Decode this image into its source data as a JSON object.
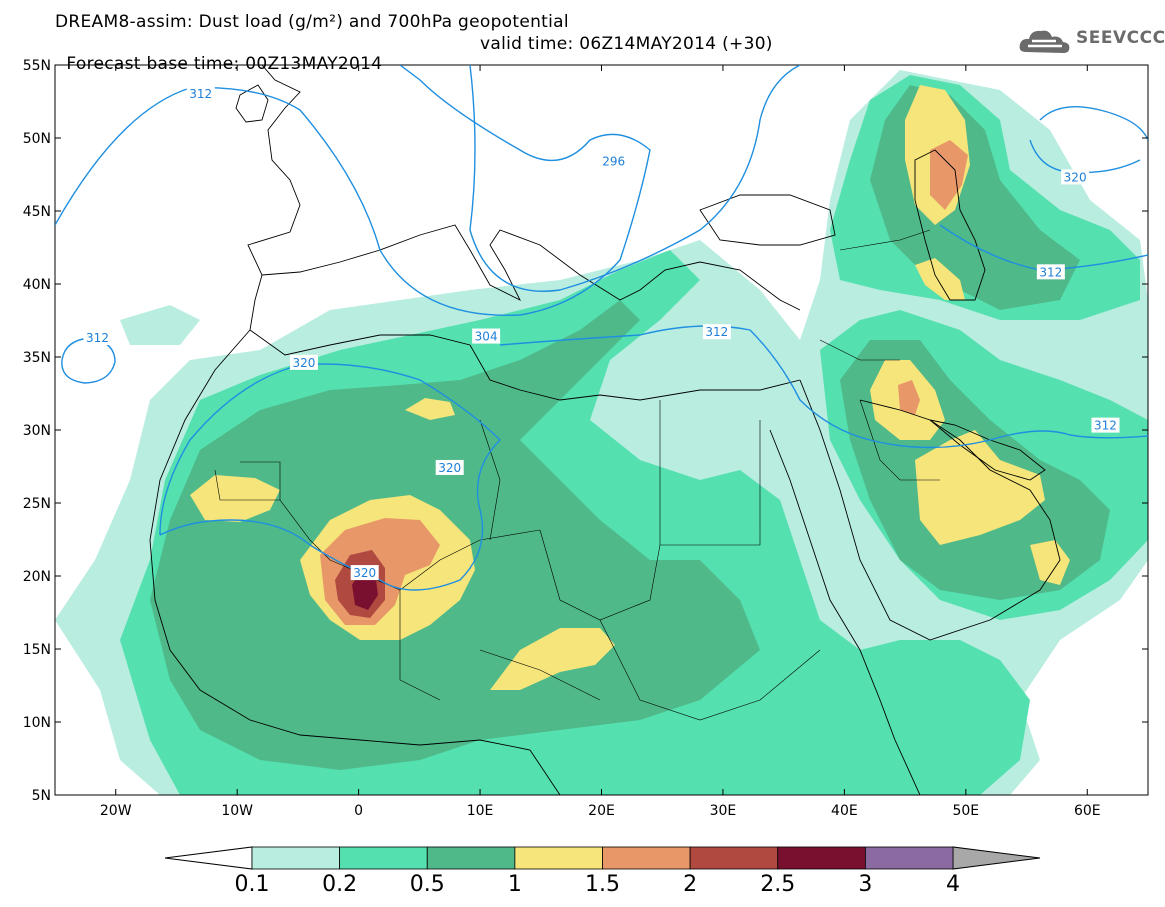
{
  "title": {
    "line1": "DREAM8-assim: Dust load (g/m²) and 700hPa geopotential",
    "line2_base": "Forecast base time: 00Z13MAY2014",
    "line2_valid": "valid time: 06Z14MAY2014 (+30)"
  },
  "logo": {
    "text": "SEEVCCC",
    "icon": "cloud-icon"
  },
  "axes": {
    "lat_labels": [
      "55N",
      "50N",
      "45N",
      "40N",
      "35N",
      "30N",
      "25N",
      "20N",
      "15N",
      "10N",
      "5N"
    ],
    "lat_values": [
      55,
      50,
      45,
      40,
      35,
      30,
      25,
      20,
      15,
      10,
      5
    ],
    "lon_labels": [
      "20W",
      "10W",
      "0",
      "10E",
      "20E",
      "30E",
      "40E",
      "50E",
      "60E"
    ],
    "lon_values": [
      -20,
      -10,
      0,
      10,
      20,
      30,
      40,
      50,
      60
    ],
    "lon_range": [
      -25,
      65
    ],
    "lat_range": [
      5,
      55
    ]
  },
  "geopotential_labels": [
    {
      "text": "312",
      "lon": -13,
      "lat": 53
    },
    {
      "text": "296",
      "lon": 21,
      "lat": 48.4
    },
    {
      "text": "320",
      "lon": 59,
      "lat": 47.3
    },
    {
      "text": "312",
      "lon": 57,
      "lat": 40.8
    },
    {
      "text": "304",
      "lon": 10.5,
      "lat": 36.4
    },
    {
      "text": "312",
      "lon": 29.5,
      "lat": 36.7
    },
    {
      "text": "312",
      "lon": -21.5,
      "lat": 36.3
    },
    {
      "text": "320",
      "lon": -4.5,
      "lat": 34.6
    },
    {
      "text": "320",
      "lon": 7.5,
      "lat": 27.4
    },
    {
      "text": "312",
      "lon": 61.5,
      "lat": 30.3
    },
    {
      "text": "320",
      "lon": 0.5,
      "lat": 20.2
    }
  ],
  "colorbar": {
    "labels": [
      "0.1",
      "0.2",
      "0.5",
      "1",
      "1.5",
      "2",
      "2.5",
      "3",
      "4"
    ],
    "colors": [
      "#b8ede0",
      "#55e0b0",
      "#4fb98a",
      "#f5e57a",
      "#e89868",
      "#b04a40",
      "#7a1030",
      "#8a6aa0"
    ],
    "under_color": "#ffffff",
    "over_color": "#a8a8a8"
  },
  "colors": {
    "geopotential": "#1f8fe0",
    "coast": "#000000"
  }
}
